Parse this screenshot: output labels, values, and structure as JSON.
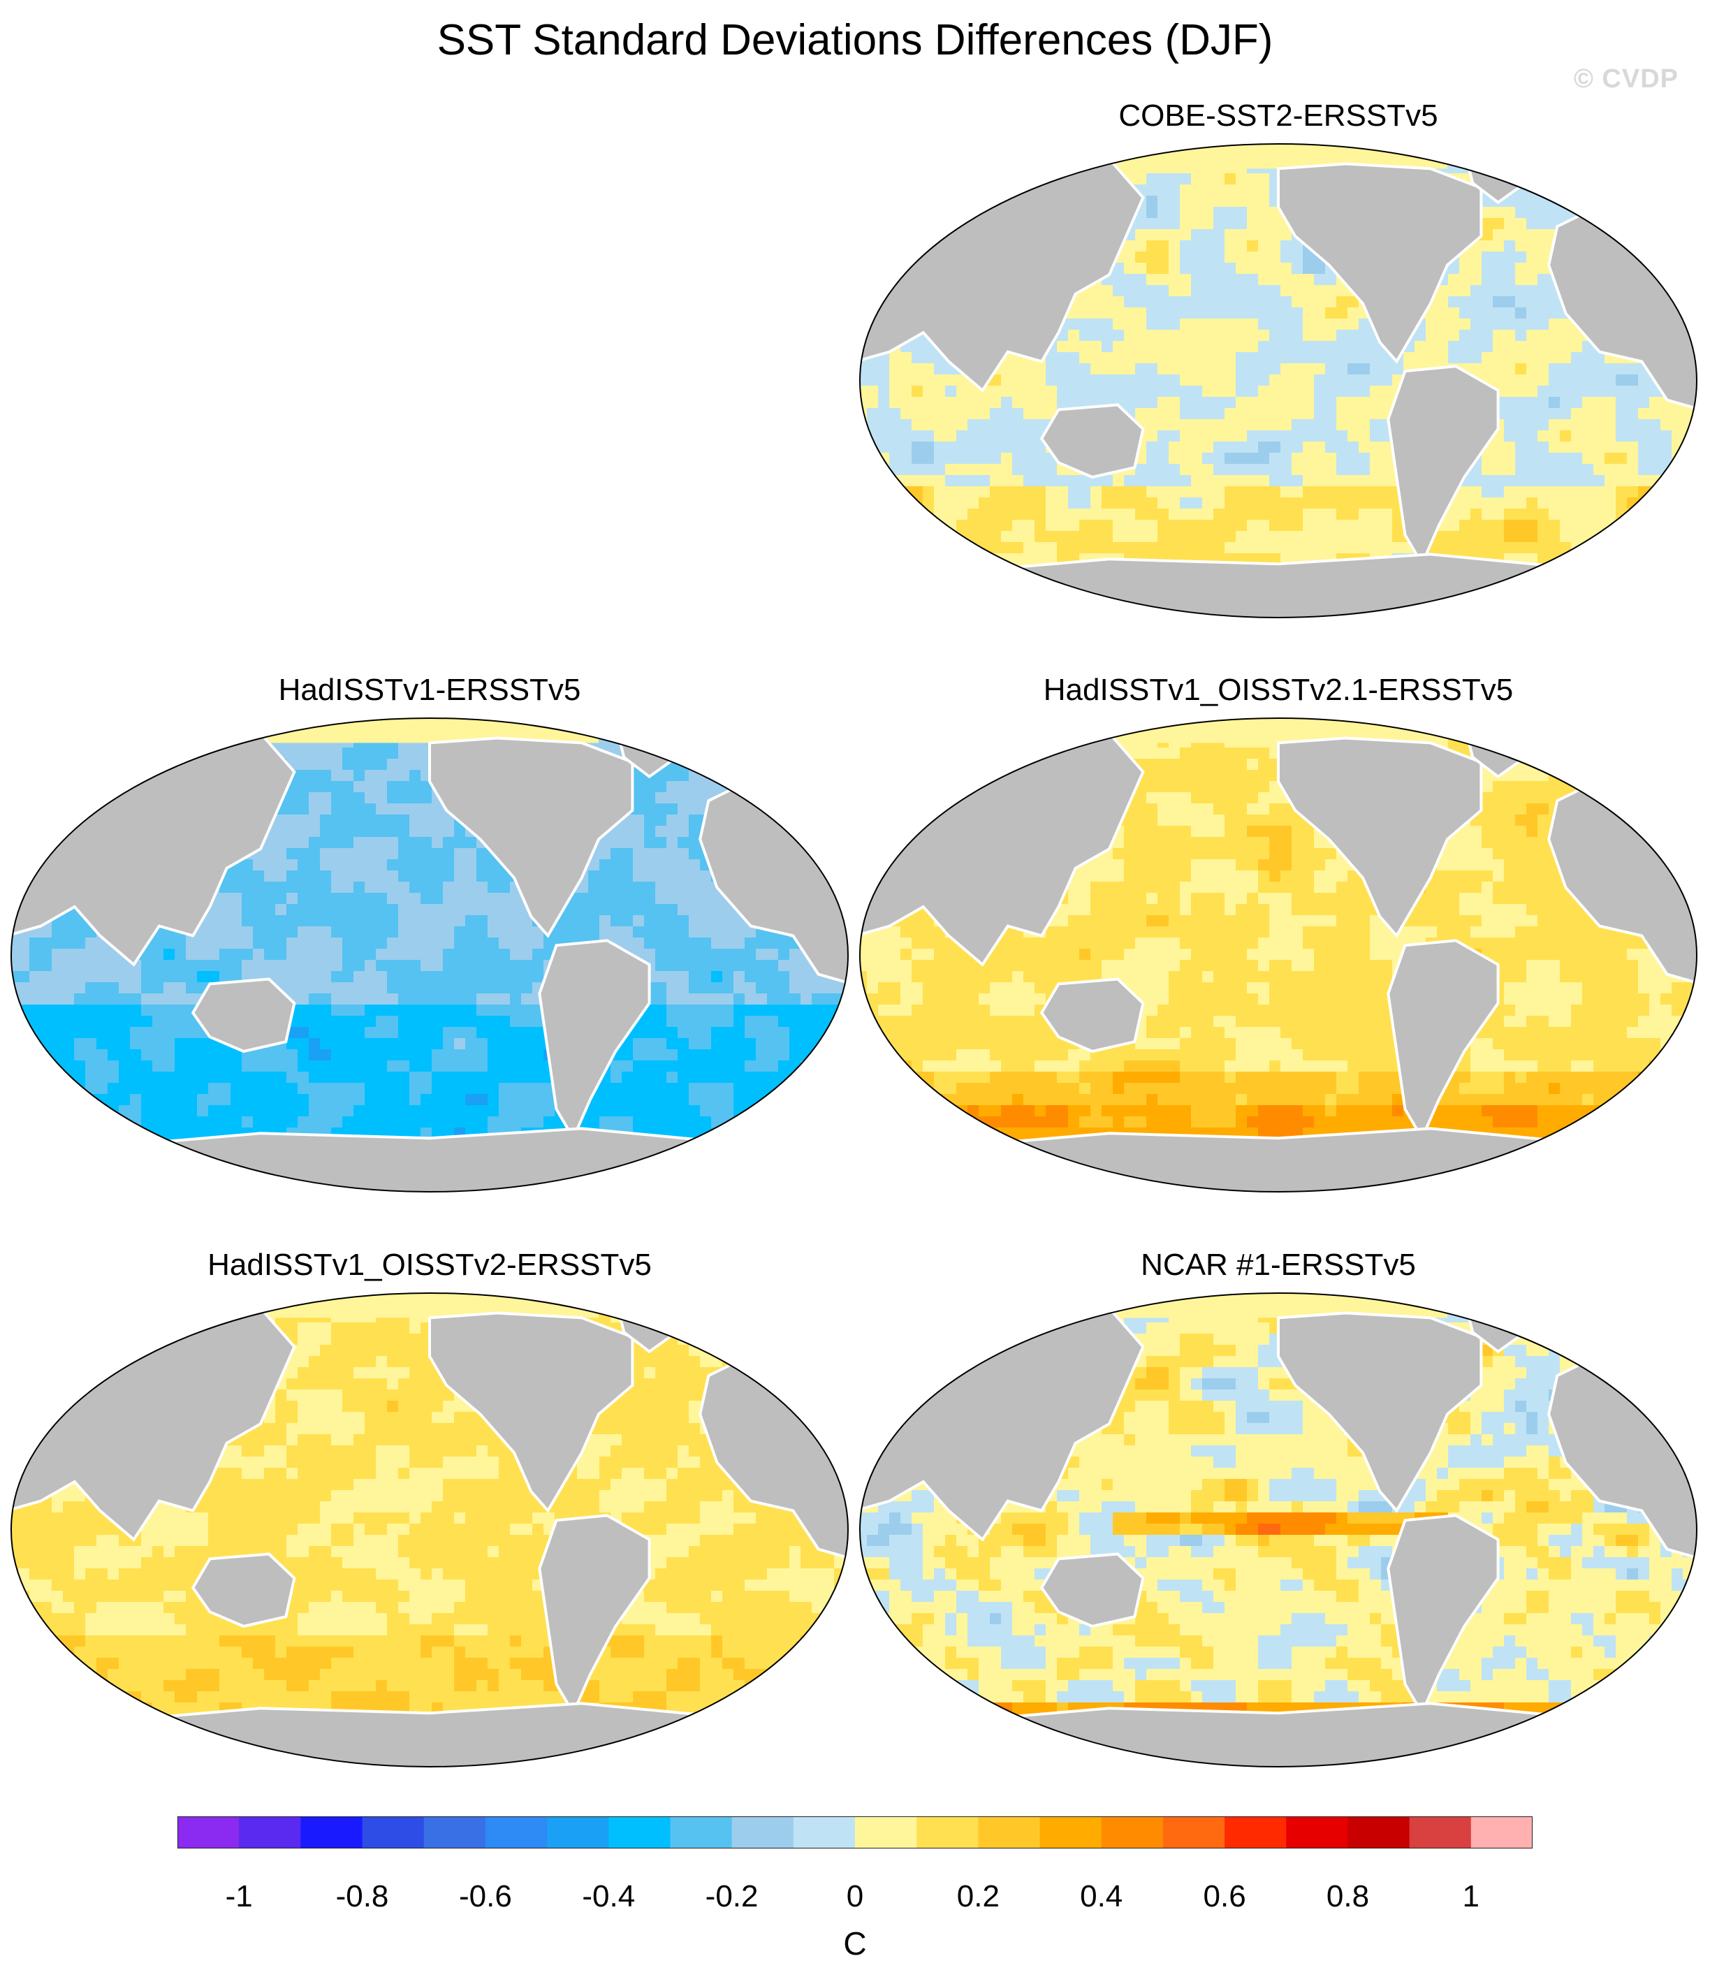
{
  "figure": {
    "title": "SST Standard Deviations Differences (DJF)",
    "watermark": "© CVDP"
  },
  "panels": [
    {
      "id": "cobe",
      "title": "COBE-SST2-ERSSTv5",
      "pattern": "mixed-weak"
    },
    {
      "id": "hadisst",
      "title": "HadISSTv1-ERSSTv5",
      "pattern": "mostly-negative"
    },
    {
      "id": "hadisst-oi21",
      "title": "HadISSTv1_OISSTv2.1-ERSSTv5",
      "pattern": "mostly-positive"
    },
    {
      "id": "hadisst-oi2",
      "title": "HadISSTv1_OISSTv2-ERSSTv5",
      "pattern": "positive-weak"
    },
    {
      "id": "ncar1",
      "title": "NCAR #1-ERSSTv5",
      "pattern": "strong-mixed"
    }
  ],
  "colorbar": {
    "unit": "C",
    "min": -1.1,
    "max": 1.1,
    "step": 0.1,
    "tick_labels": [
      "-1",
      "-0.8",
      "-0.6",
      "-0.4",
      "-0.2",
      "0",
      "0.2",
      "0.4",
      "0.6",
      "0.8",
      "1"
    ],
    "tick_values": [
      -1,
      -0.8,
      -0.6,
      -0.4,
      -0.2,
      0,
      0.2,
      0.4,
      0.6,
      0.8,
      1
    ],
    "colors": [
      "#8b2af0",
      "#5a2af0",
      "#1a1aff",
      "#2e4de6",
      "#3a70e6",
      "#2e8af5",
      "#1aa0f5",
      "#00bfff",
      "#55c2f2",
      "#9ccdec",
      "#bfe3f5",
      "#fff59a",
      "#ffe050",
      "#ffc828",
      "#ffab00",
      "#ff8c00",
      "#ff6a10",
      "#ff2a00",
      "#e60000",
      "#c80000",
      "#d94040",
      "#ffb0b0"
    ]
  }
}
